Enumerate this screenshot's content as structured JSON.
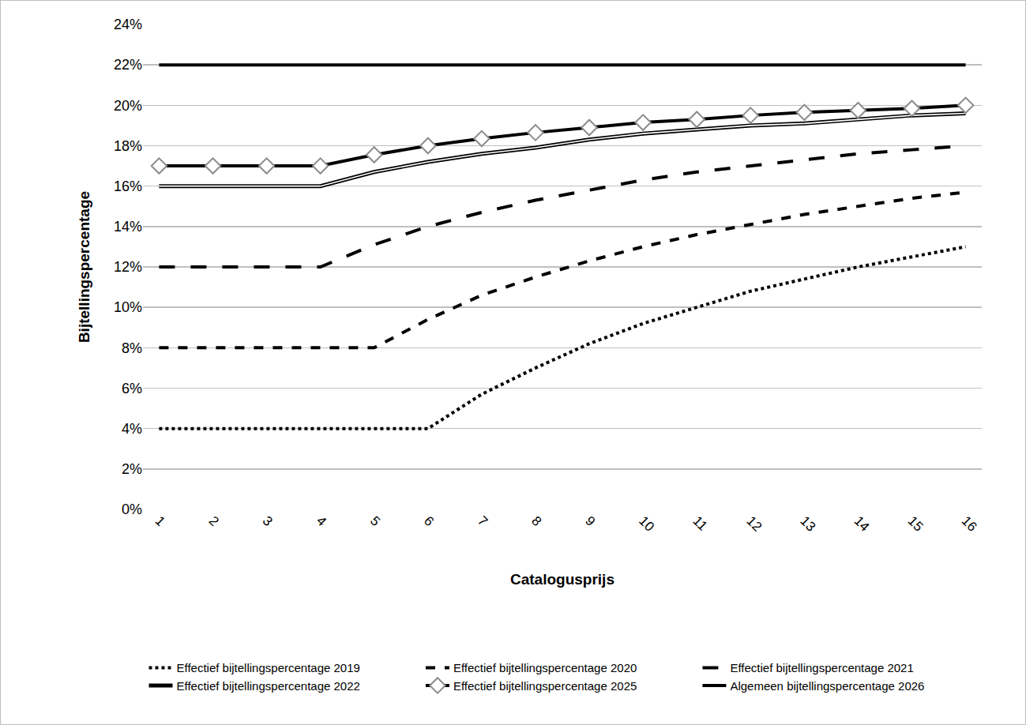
{
  "chart_data": {
    "type": "line",
    "x_label": "Catalogusprijs",
    "y_label": "Bijtellingspercentage",
    "categories": [
      "1",
      "2",
      "3",
      "4",
      "5",
      "6",
      "7",
      "8",
      "9",
      "10",
      "11",
      "12",
      "13",
      "14",
      "15",
      "16"
    ],
    "ylim": [
      0,
      24
    ],
    "yticks": [
      {
        "value": 0,
        "label": "0%"
      },
      {
        "value": 2,
        "label": "2%"
      },
      {
        "value": 4,
        "label": "4%"
      },
      {
        "value": 6,
        "label": "6%"
      },
      {
        "value": 8,
        "label": "8%"
      },
      {
        "value": 10,
        "label": "10%"
      },
      {
        "value": 12,
        "label": "12%"
      },
      {
        "value": 14,
        "label": "14%"
      },
      {
        "value": 16,
        "label": "16%"
      },
      {
        "value": 18,
        "label": "18%"
      },
      {
        "value": 20,
        "label": "20%"
      },
      {
        "value": 22,
        "label": "22%"
      },
      {
        "value": 24,
        "label": "24%"
      }
    ],
    "grid": true,
    "legend": "bottom",
    "series": [
      {
        "name": "Effectief bijtellingspercentage 2019",
        "color": "#000000",
        "line_style": "dot",
        "values": [
          4,
          4,
          4,
          4,
          4,
          4,
          5.7,
          7,
          8.2,
          9.2,
          10,
          10.8,
          11.4,
          12,
          12.5,
          13
        ]
      },
      {
        "name": "Effectief bijtellingspercentage 2020",
        "color": "#000000",
        "line_style": "dash",
        "values": [
          8,
          8,
          8,
          8,
          8,
          9.4,
          10.6,
          11.5,
          12.3,
          13,
          13.6,
          14.1,
          14.6,
          15,
          15.4,
          15.7
        ]
      },
      {
        "name": "Effectief bijtellingspercentage 2021",
        "color": "#000000",
        "line_style": "longdash",
        "values": [
          12,
          12,
          12,
          12,
          13.1,
          14,
          14.7,
          15.3,
          15.8,
          16.3,
          16.7,
          17,
          17.3,
          17.6,
          17.8,
          18
        ]
      },
      {
        "name": "Effectief bijtellingspercentage 2022",
        "color": "#000000",
        "line_style": "double",
        "values": [
          16,
          16,
          16,
          16,
          16.7,
          17.2,
          17.6,
          17.9,
          18.3,
          18.6,
          18.8,
          19,
          19.1,
          19.3,
          19.5,
          19.6
        ]
      },
      {
        "name": "Effectief bijtellingspercentage 2025",
        "color": "#000000",
        "line_style": "solid",
        "marker": "diamond",
        "values": [
          17,
          17,
          17,
          17,
          17.55,
          18,
          18.35,
          18.65,
          18.9,
          19.15,
          19.3,
          19.5,
          19.65,
          19.75,
          19.85,
          20
        ]
      },
      {
        "name": "Algemeen bijtellingspercentage 2026",
        "color": "#000000",
        "line_style": "solid",
        "values": [
          22,
          22,
          22,
          22,
          22,
          22,
          22,
          22,
          22,
          22,
          22,
          22,
          22,
          22,
          22,
          22
        ]
      }
    ]
  }
}
